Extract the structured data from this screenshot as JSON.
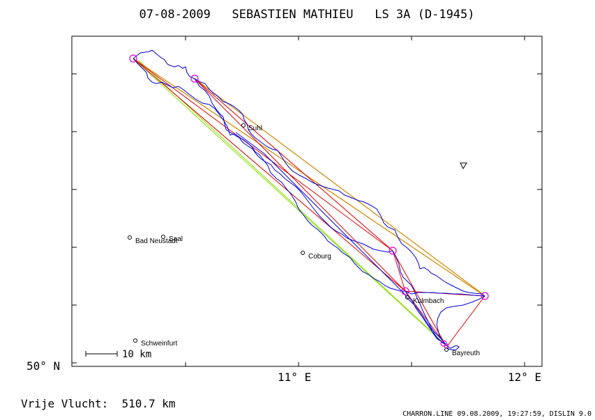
{
  "title": "07-08-2009   SEBASTIEN MATHIEU   LS 3A (D-1945)",
  "axes": {
    "x_ticks": [
      "11° E",
      "12° E"
    ],
    "y_ticks": [
      "50° N"
    ]
  },
  "scale_bar": {
    "label": "10 km"
  },
  "cities": [
    {
      "name": "Suhl"
    },
    {
      "name": "Bad Neustadt"
    },
    {
      "name": "Saal"
    },
    {
      "name": "Coburg"
    },
    {
      "name": "Kulmbach"
    },
    {
      "name": "Schweinfurt"
    },
    {
      "name": "Bayreuth"
    }
  ],
  "colors": {
    "track": "#0000dd",
    "task_legs": "#dd0000",
    "free_flight": "#88dd00",
    "triangle": "#cc8800",
    "turnpoints": "#dd00dd",
    "frame": "#000000"
  },
  "footer": {
    "distance_label": "Vrije Vlucht:  510.7 km",
    "credit": "CHARRON.LINE 09.08.2009, 19:27:59, DISLIN 9.0"
  }
}
